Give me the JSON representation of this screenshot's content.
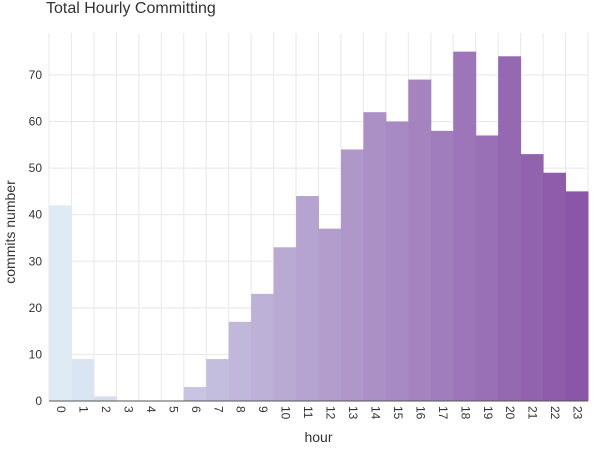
{
  "chart_data": {
    "type": "bar",
    "title": "Total Hourly Committing",
    "xlabel": "hour",
    "ylabel": "commits number",
    "categories": [
      "0",
      "1",
      "2",
      "3",
      "4",
      "5",
      "6",
      "7",
      "8",
      "9",
      "10",
      "11",
      "12",
      "13",
      "14",
      "15",
      "16",
      "17",
      "18",
      "19",
      "20",
      "21",
      "22",
      "23"
    ],
    "values": [
      42,
      9,
      1,
      0,
      0,
      0,
      3,
      9,
      17,
      23,
      33,
      44,
      37,
      54,
      62,
      60,
      69,
      58,
      75,
      57,
      74,
      53,
      49,
      45
    ],
    "ylim": [
      0,
      79
    ],
    "yticks": [
      0,
      10,
      20,
      30,
      40,
      50,
      60,
      70
    ],
    "grid": true,
    "legend": "none",
    "color_scale": [
      "#deebf5",
      "#8a56a8"
    ]
  }
}
